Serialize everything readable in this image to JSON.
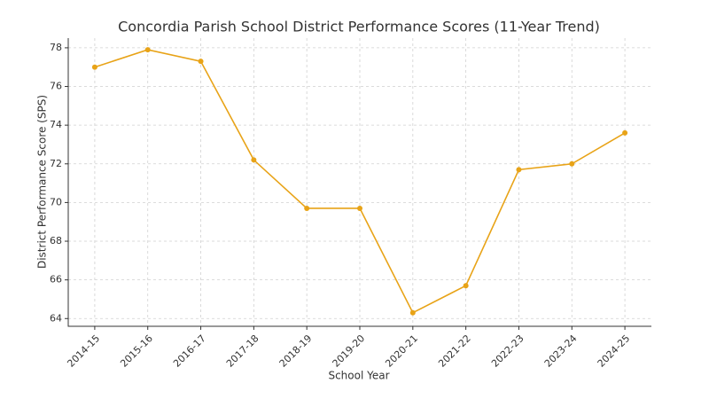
{
  "chart_data": {
    "type": "line",
    "title": "Concordia Parish School District Performance Scores (11-Year Trend)",
    "x_label": "School Year",
    "y_label": "District Performance Score (SPS)",
    "categories": [
      "2014-15",
      "2015-16",
      "2016-17",
      "2017-18",
      "2018-19",
      "2019-20",
      "2020-21",
      "2021-22",
      "2022-23",
      "2023-24",
      "2024-25"
    ],
    "series": [
      {
        "name": "SPS",
        "color": "#e8a317",
        "values": [
          77.0,
          77.9,
          77.3,
          72.2,
          69.7,
          69.7,
          64.3,
          65.7,
          71.7,
          72.0,
          73.6
        ]
      }
    ],
    "ylim": [
      63.6,
      78.5
    ],
    "yticks": [
      64,
      66,
      68,
      70,
      72,
      74,
      76,
      78
    ],
    "grid": true
  }
}
